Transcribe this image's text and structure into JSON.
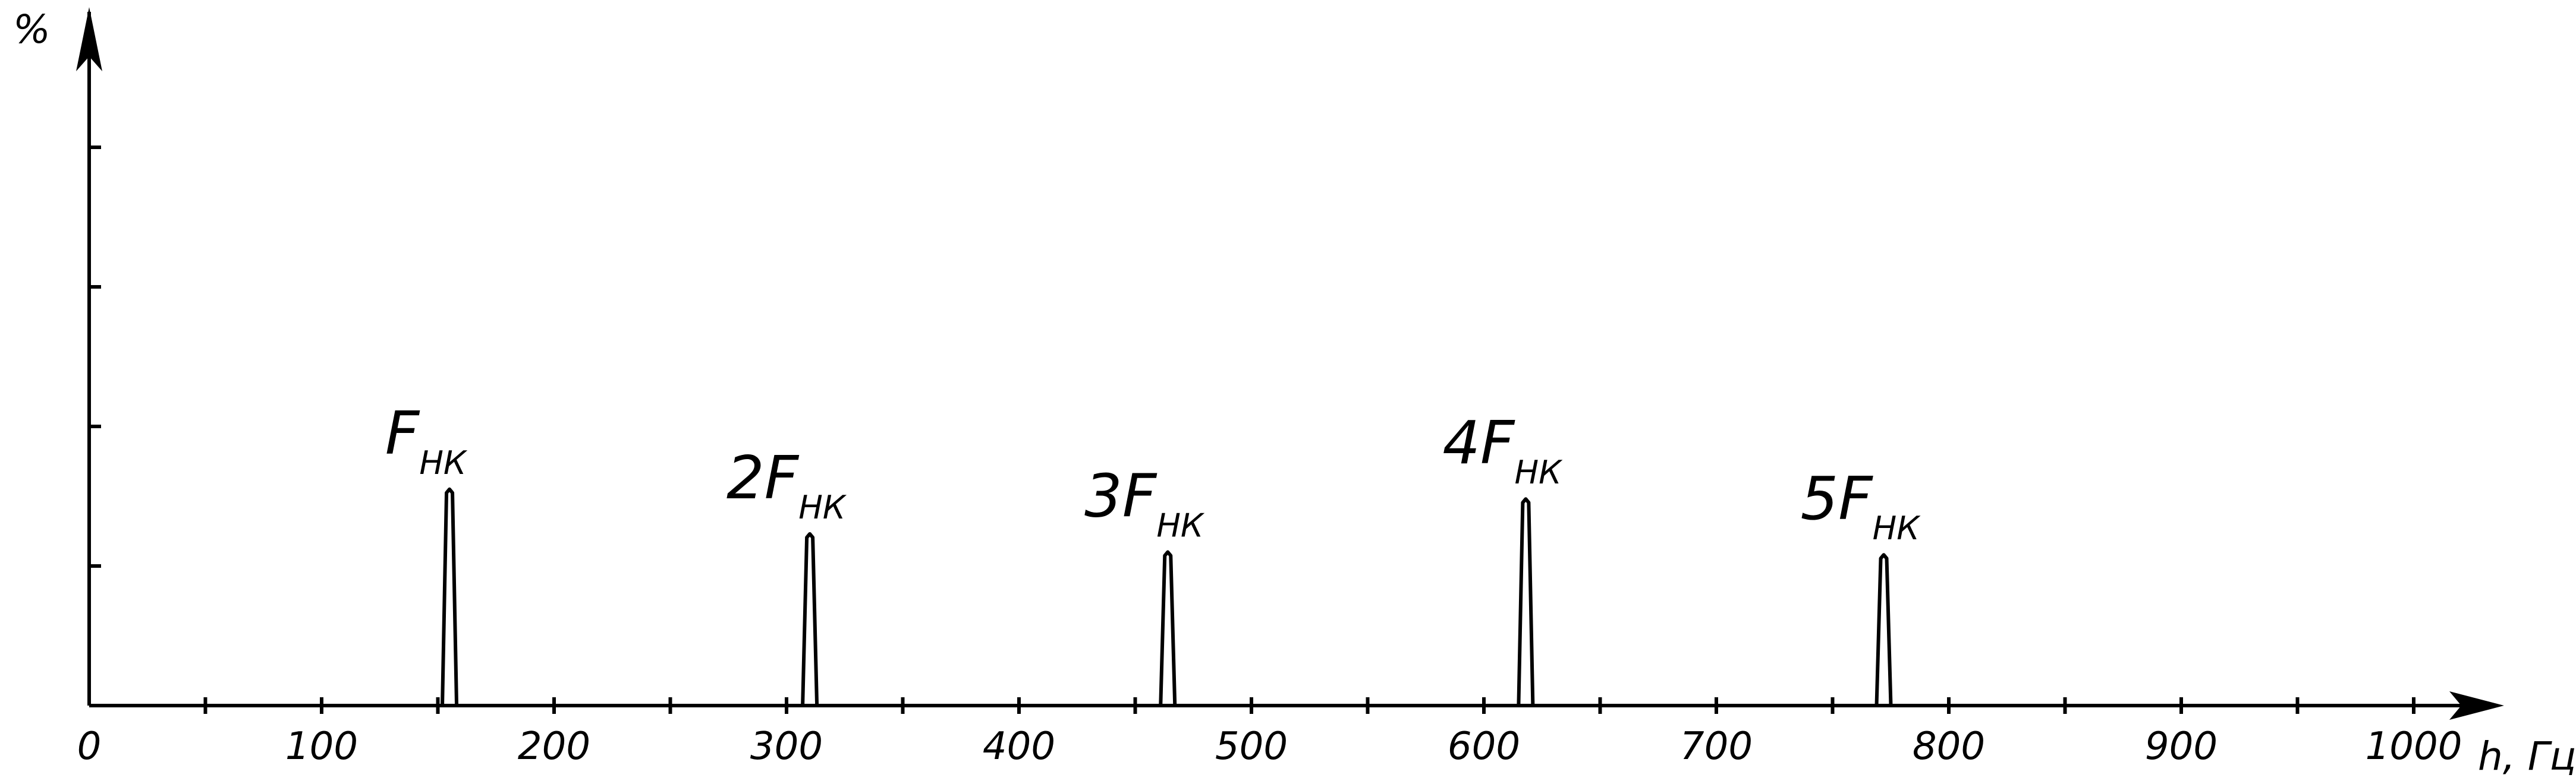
{
  "chart_data": {
    "type": "line",
    "title": "",
    "ylabel": "%",
    "xlabel": "h, Гц",
    "xlim": [
      0,
      1040
    ],
    "ylim": [
      0,
      5
    ],
    "x_ticks": [
      {
        "value": 0,
        "label": "0"
      },
      {
        "value": 100,
        "label": "100"
      },
      {
        "value": 200,
        "label": "200"
      },
      {
        "value": 300,
        "label": "300"
      },
      {
        "value": 400,
        "label": "400"
      },
      {
        "value": 500,
        "label": "500"
      },
      {
        "value": 600,
        "label": "600"
      },
      {
        "value": 700,
        "label": "700"
      },
      {
        "value": 800,
        "label": "800"
      },
      {
        "value": 900,
        "label": "900"
      },
      {
        "value": 1000,
        "label": "1000"
      }
    ],
    "x_minor_ticks": [
      50,
      150,
      250,
      350,
      450,
      550,
      650,
      750,
      850,
      950
    ],
    "y_ticks": [
      1,
      2,
      3,
      4
    ],
    "peaks": [
      {
        "x": 155,
        "y": 1.55,
        "label_main": "F",
        "label_sub": "НК"
      },
      {
        "x": 310,
        "y": 1.23,
        "label_main": "2F",
        "label_sub": "НК"
      },
      {
        "x": 464,
        "y": 1.1,
        "label_main": "3F",
        "label_sub": "НК"
      },
      {
        "x": 618,
        "y": 1.48,
        "label_main": "4F",
        "label_sub": "НК"
      },
      {
        "x": 772,
        "y": 1.08,
        "label_main": "5F",
        "label_sub": "НК"
      }
    ],
    "grid": false,
    "legend": "none"
  }
}
